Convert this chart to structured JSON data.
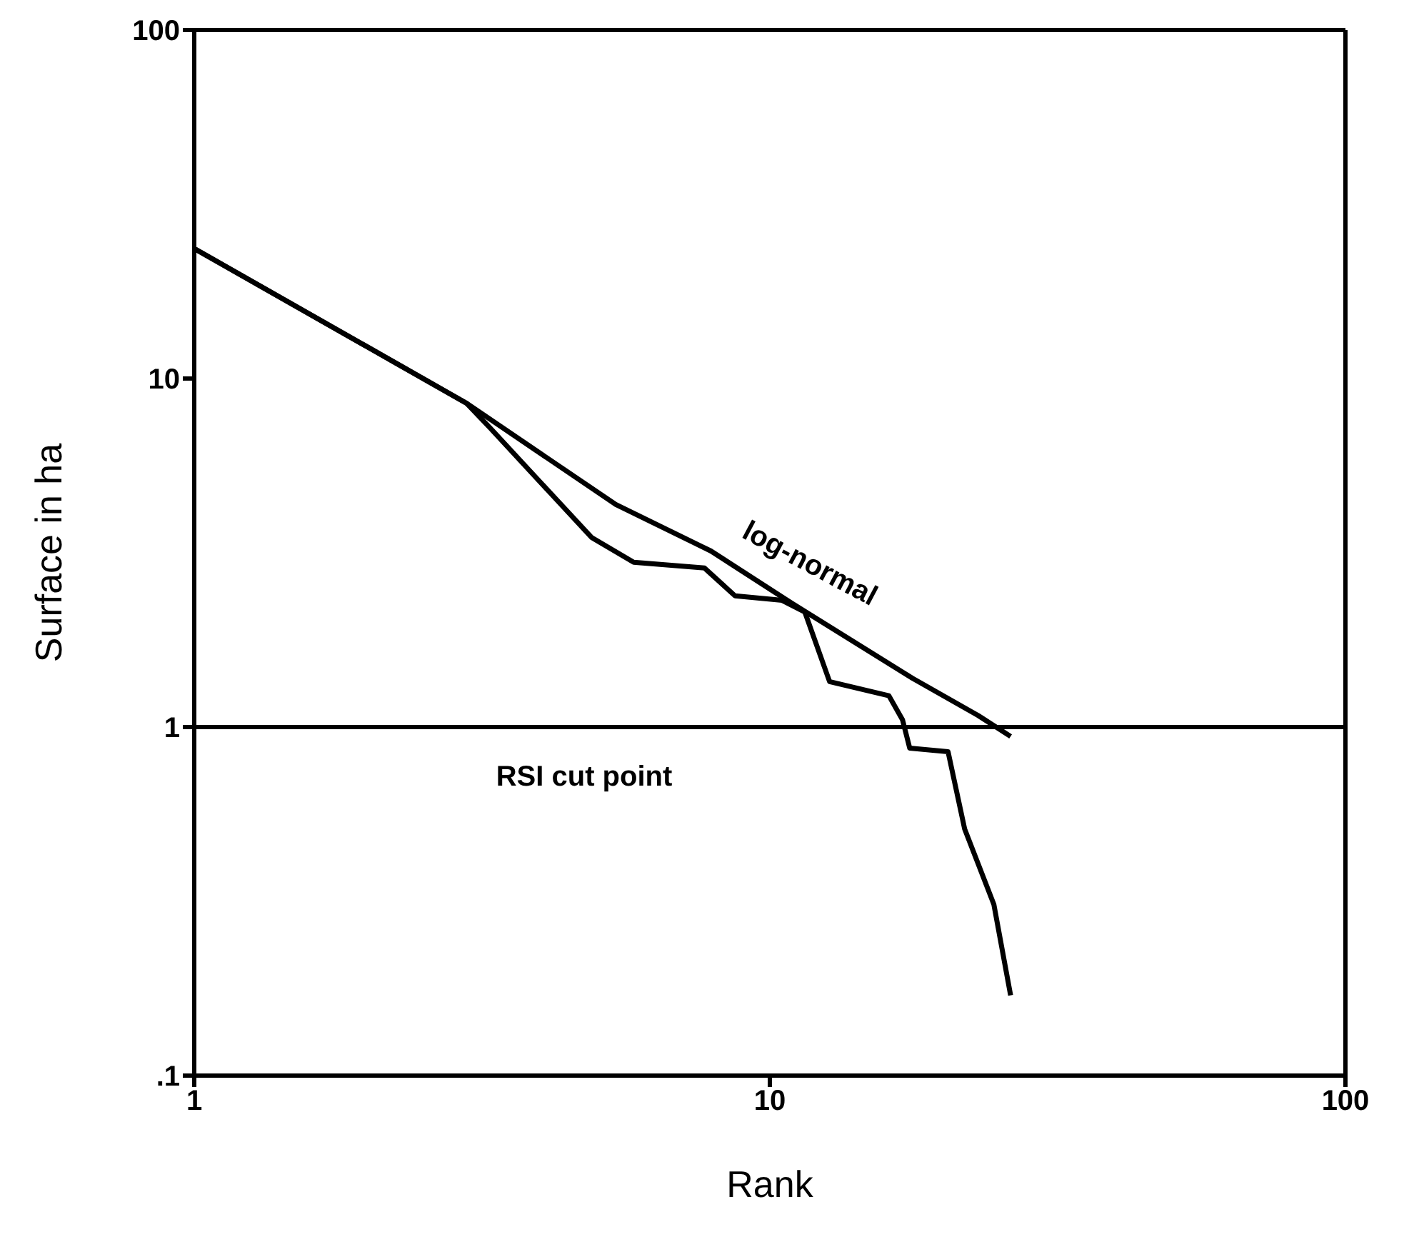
{
  "chart_data": {
    "type": "line",
    "xlabel": "Rank",
    "ylabel": "Surface in ha",
    "log": "xy",
    "xlim": [
      1,
      100
    ],
    "xticks": [
      1,
      10,
      100
    ],
    "ylim": [
      0.1,
      100
    ],
    "yticks": [
      {
        "value": 0.1,
        "label": ".1"
      },
      1,
      10,
      100
    ],
    "marker": "none",
    "line_style": "solid",
    "series": [
      {
        "name": "log-normal",
        "color": "#000000",
        "x": [
          1,
          2.97,
          5.4,
          7.9,
          10.9,
          17.7,
          23,
          26.2
        ],
        "values": [
          23.6,
          8.5,
          4.35,
          3.2,
          2.27,
          1.38,
          1.08,
          0.94
        ]
      },
      {
        "color": "#000000",
        "x": [
          1,
          2.97,
          3.27,
          4.9,
          5.8,
          7.7,
          8.7,
          10.5,
          11.5,
          12.7,
          16.1,
          17.0,
          17.5,
          20.4,
          21.8,
          24.5,
          26.2
        ],
        "values": [
          23.6,
          8.5,
          7.2,
          3.5,
          2.97,
          2.86,
          2.38,
          2.31,
          2.14,
          1.35,
          1.23,
          1.05,
          0.87,
          0.85,
          0.51,
          0.31,
          0.17
        ]
      }
    ],
    "ref_lines": [
      {
        "axis": "y",
        "value": 1,
        "label": "RSI cut point",
        "color": "#000000"
      }
    ]
  }
}
